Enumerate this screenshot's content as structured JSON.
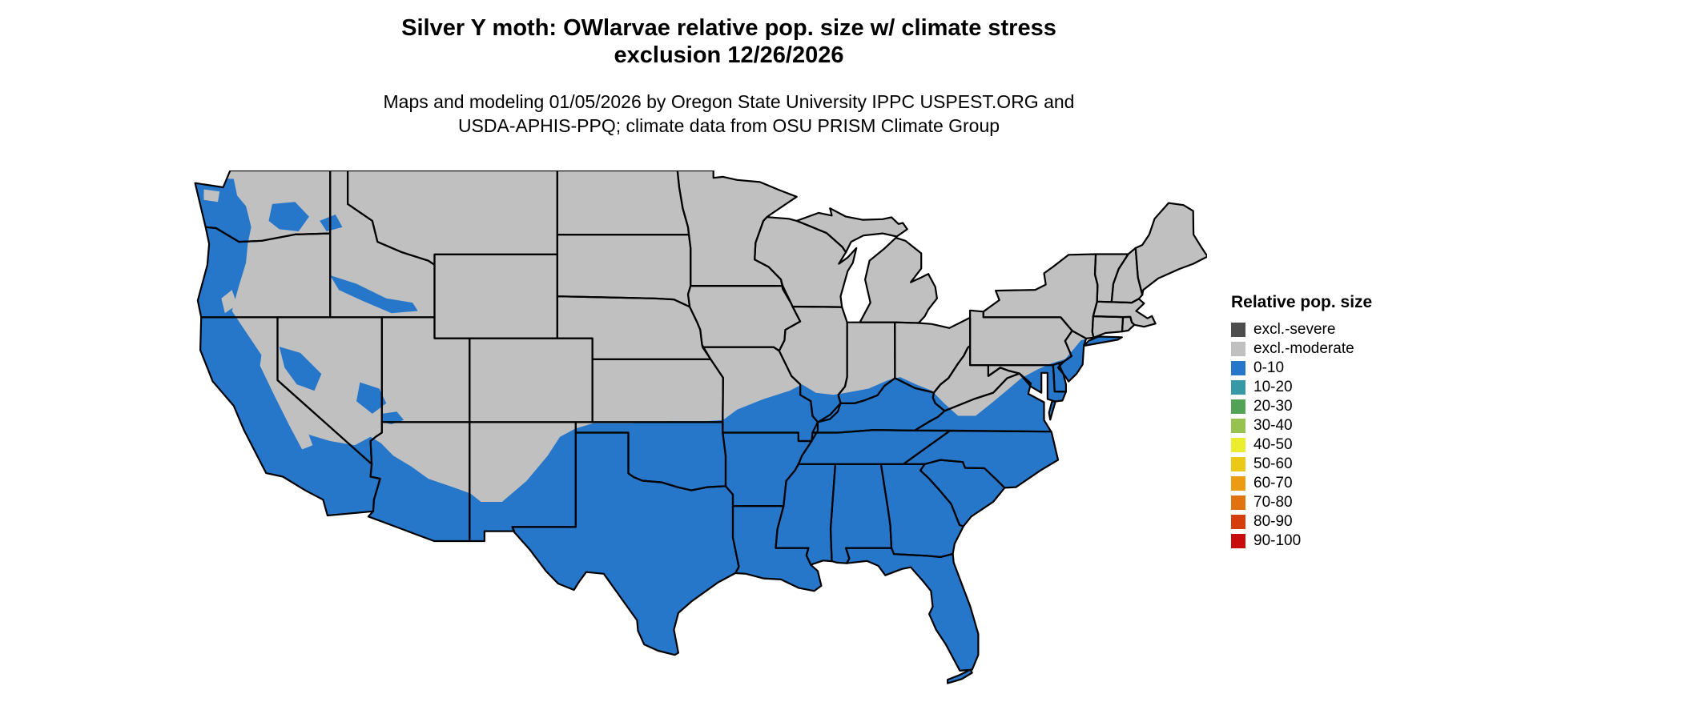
{
  "title": {
    "line1": "Silver Y moth: OWlarvae relative pop. size w/ climate stress",
    "line2": "exclusion 12/26/2026"
  },
  "subtitle": {
    "line1": "Maps and modeling 01/05/2026 by Oregon State University IPPC USPEST.ORG and",
    "line2": "USDA-APHIS-PPQ; climate data from OSU PRISM Climate Group"
  },
  "legend": {
    "title": "Relative pop. size",
    "items": [
      {
        "label": "excl.-severe",
        "color": "#4d4d4d"
      },
      {
        "label": "excl.-moderate",
        "color": "#c0c0c0"
      },
      {
        "label": "0-10",
        "color": "#2677c9"
      },
      {
        "label": "10-20",
        "color": "#3899a6"
      },
      {
        "label": "20-30",
        "color": "#52a356"
      },
      {
        "label": "30-40",
        "color": "#97c24f"
      },
      {
        "label": "40-50",
        "color": "#eded2f"
      },
      {
        "label": "50-60",
        "color": "#ecc917"
      },
      {
        "label": "60-70",
        "color": "#eb9c12"
      },
      {
        "label": "70-80",
        "color": "#e0720f"
      },
      {
        "label": "80-90",
        "color": "#d43e0d"
      },
      {
        "label": "90-100",
        "color": "#c80b0b"
      }
    ]
  },
  "map": {
    "state_border_color": "#000000",
    "fill_excluded_moderate": "#c0c0c0",
    "fill_population_0_10": "#2677c9",
    "background": "#ffffff"
  }
}
